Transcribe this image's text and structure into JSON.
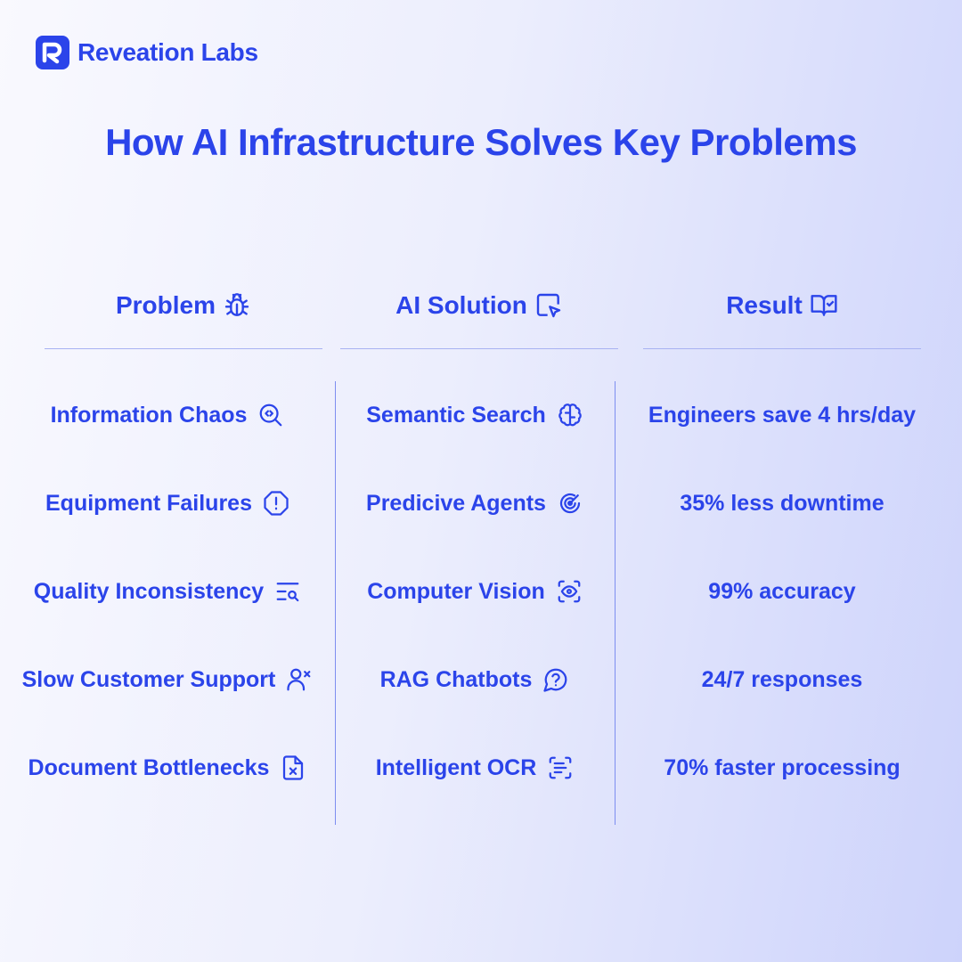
{
  "brand": {
    "name": "Reveation Labs",
    "color": "#2b44ea"
  },
  "title": "How AI Infrastructure Solves Key Problems",
  "columns": [
    {
      "label": "Problem",
      "icon": "bug-icon"
    },
    {
      "label": "AI Solution",
      "icon": "cursor-click-icon"
    },
    {
      "label": "Result",
      "icon": "book-check-icon"
    }
  ],
  "rows": [
    {
      "problem": "Information Chaos",
      "problem_icon": "search-code-icon",
      "solution": "Semantic Search",
      "solution_icon": "brain-icon",
      "result": "Engineers save 4 hrs/day"
    },
    {
      "problem": "Equipment Failures",
      "problem_icon": "alert-octagon-icon",
      "solution": "Predicive Agents",
      "solution_icon": "radar-icon",
      "result": "35% less downtime"
    },
    {
      "problem": "Quality Inconsistency",
      "problem_icon": "text-search-icon",
      "solution": "Computer Vision",
      "solution_icon": "scan-eye-icon",
      "result": "99% accuracy"
    },
    {
      "problem": "Slow Customer Support",
      "problem_icon": "user-x-icon",
      "solution": "RAG Chatbots",
      "solution_icon": "message-question-icon",
      "result": "24/7 responses"
    },
    {
      "problem": "Document Bottlenecks",
      "problem_icon": "file-x-icon",
      "solution": "Intelligent OCR",
      "solution_icon": "scan-text-icon",
      "result": "70% faster processing"
    }
  ]
}
